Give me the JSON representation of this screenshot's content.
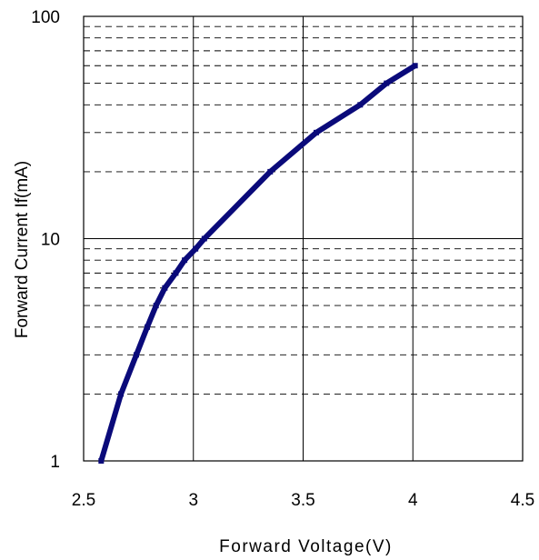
{
  "chart_data": {
    "type": "line",
    "title": "",
    "xlabel": "Forward Voltage(V)",
    "ylabel": "Forward Current If(mA)",
    "xlim": [
      2.5,
      4.5
    ],
    "ylim": [
      1,
      100
    ],
    "yscale": "log",
    "grid": true,
    "x_ticks": [
      {
        "value": 2.5,
        "label": "2.5"
      },
      {
        "value": 3,
        "label": "3"
      },
      {
        "value": 3.5,
        "label": "3.5"
      },
      {
        "value": 4,
        "label": "4"
      },
      {
        "value": 4.5,
        "label": "4.5"
      }
    ],
    "y_ticks": [
      {
        "value": 1,
        "label": "1"
      },
      {
        "value": 10,
        "label": "10"
      },
      {
        "value": 100,
        "label": "100"
      }
    ],
    "minor_y_gridlines": [
      2,
      3,
      4,
      5,
      6,
      7,
      8,
      9,
      20,
      30,
      40,
      50,
      60,
      70,
      80,
      90
    ],
    "series": [
      {
        "color": "#0a0a7a",
        "points": [
          {
            "x": 2.58,
            "y": 1
          },
          {
            "x": 2.67,
            "y": 2
          },
          {
            "x": 2.74,
            "y": 3
          },
          {
            "x": 2.79,
            "y": 4
          },
          {
            "x": 2.83,
            "y": 5
          },
          {
            "x": 2.87,
            "y": 6
          },
          {
            "x": 2.92,
            "y": 7
          },
          {
            "x": 2.96,
            "y": 8
          },
          {
            "x": 3.01,
            "y": 9
          },
          {
            "x": 3.05,
            "y": 10
          },
          {
            "x": 3.35,
            "y": 20
          },
          {
            "x": 3.56,
            "y": 30
          },
          {
            "x": 3.76,
            "y": 40
          },
          {
            "x": 3.88,
            "y": 50
          },
          {
            "x": 4.01,
            "y": 60
          }
        ]
      }
    ]
  }
}
